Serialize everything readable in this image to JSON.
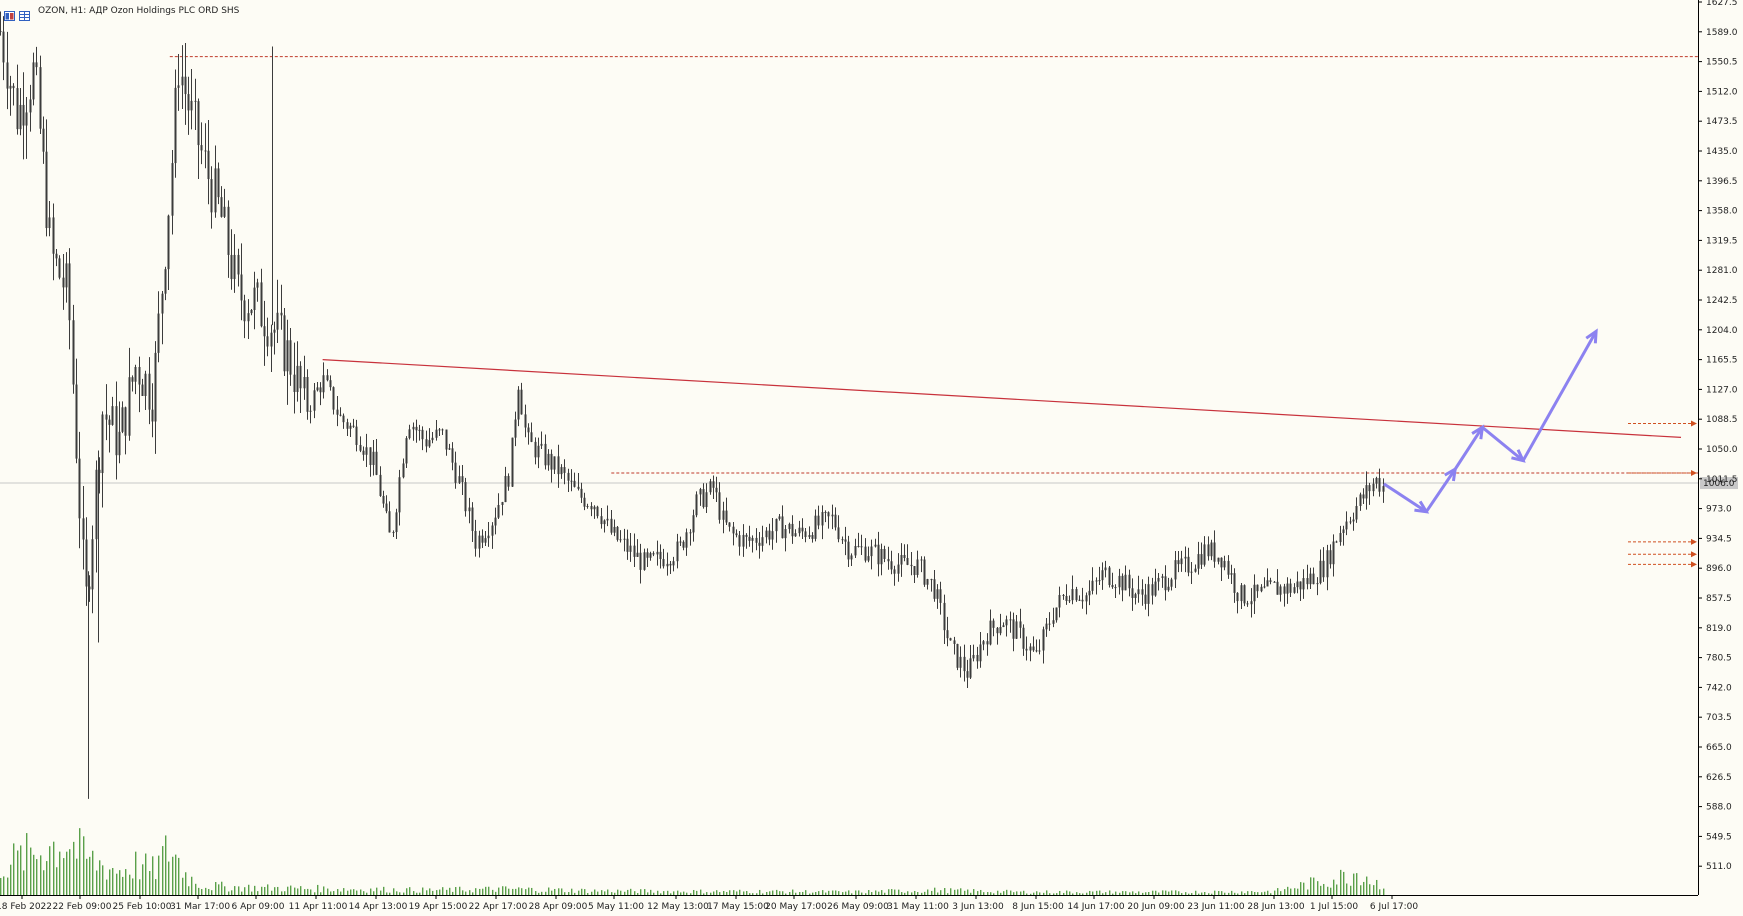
{
  "window": {
    "title": "OZON, H1:  АДР Ozon Holdings PLC ORD SHS"
  },
  "colors": {
    "background": "#fdfcf5",
    "candles": "#3c3c3c",
    "volume": "#5aa04a",
    "trendline": "#c8323c",
    "level": "#c03a2a",
    "forecast_arrows": "#8c82f0",
    "current_price_line": "#c8c8c8",
    "alert_arrows": "#d05020"
  },
  "chart_data": {
    "type": "candlestick",
    "symbol": "OZON",
    "timeframe": "H1",
    "ylim": [
      472.0,
      1627.5
    ],
    "y_ticks": [
      "1627.5",
      "1589.0",
      "1550.5",
      "1512.0",
      "1473.5",
      "1435.0",
      "1396.5",
      "1358.0",
      "1319.5",
      "1281.0",
      "1242.5",
      "1204.0",
      "1165.5",
      "1127.0",
      "1088.5",
      "1050.0",
      "1011.5",
      "973.0",
      "934.5",
      "896.0",
      "857.5",
      "819.0",
      "780.5",
      "742.0",
      "703.5",
      "665.0",
      "626.5",
      "588.0",
      "549.5",
      "511.0"
    ],
    "x_labels": [
      "18 Feb 2022",
      "22 Feb 09:00",
      "25 Feb 10:00",
      "31 Mar 17:00",
      "6 Apr 09:00",
      "11 Apr 11:00",
      "14 Apr 13:00",
      "19 Apr 15:00",
      "22 Apr 17:00",
      "28 Apr 09:00",
      "5 May 11:00",
      "12 May 13:00",
      "17 May 15:00",
      "20 May 17:00",
      "26 May 09:00",
      "31 May 11:00",
      "3 Jun 13:00",
      "8 Jun 15:00",
      "14 Jun 17:00",
      "20 Jun 09:00",
      "23 Jun 11:00",
      "28 Jun 13:00",
      "1 Jul 15:00",
      "6 Jul 17:00"
    ],
    "current_price": 1006.0,
    "current_price_label": "1006.0",
    "price_path": [
      [
        0,
        1590
      ],
      [
        0.01,
        1480
      ],
      [
        0.02,
        1540
      ],
      [
        0.03,
        1300
      ],
      [
        0.04,
        1250
      ],
      [
        0.05,
        840
      ],
      [
        0.06,
        1100
      ],
      [
        0.07,
        1060
      ],
      [
        0.08,
        1160
      ],
      [
        0.09,
        1120
      ],
      [
        0.1,
        1390
      ],
      [
        0.105,
        1550
      ],
      [
        0.11,
        1500
      ],
      [
        0.12,
        1420
      ],
      [
        0.13,
        1350
      ],
      [
        0.14,
        1250
      ],
      [
        0.15,
        1240
      ],
      [
        0.16,
        1210
      ],
      [
        0.17,
        1170
      ],
      [
        0.18,
        1100
      ],
      [
        0.19,
        1140
      ],
      [
        0.2,
        1090
      ],
      [
        0.21,
        1070
      ],
      [
        0.22,
        1030
      ],
      [
        0.23,
        930
      ],
      [
        0.24,
        1090
      ],
      [
        0.25,
        1060
      ],
      [
        0.26,
        1070
      ],
      [
        0.27,
        1010
      ],
      [
        0.28,
        930
      ],
      [
        0.29,
        960
      ],
      [
        0.3,
        1020
      ],
      [
        0.305,
        1140
      ],
      [
        0.31,
        1060
      ],
      [
        0.32,
        1040
      ],
      [
        0.33,
        1020
      ],
      [
        0.34,
        990
      ],
      [
        0.35,
        980
      ],
      [
        0.36,
        940
      ],
      [
        0.37,
        920
      ],
      [
        0.38,
        900
      ],
      [
        0.39,
        910
      ],
      [
        0.4,
        920
      ],
      [
        0.41,
        980
      ],
      [
        0.42,
        1000
      ],
      [
        0.425,
        960
      ],
      [
        0.43,
        940
      ],
      [
        0.44,
        930
      ],
      [
        0.45,
        940
      ],
      [
        0.46,
        950
      ],
      [
        0.47,
        940
      ],
      [
        0.48,
        950
      ],
      [
        0.49,
        960
      ],
      [
        0.5,
        920
      ],
      [
        0.51,
        920
      ],
      [
        0.52,
        910
      ],
      [
        0.53,
        900
      ],
      [
        0.54,
        900
      ],
      [
        0.55,
        870
      ],
      [
        0.56,
        790
      ],
      [
        0.57,
        760
      ],
      [
        0.58,
        810
      ],
      [
        0.59,
        830
      ],
      [
        0.6,
        810
      ],
      [
        0.61,
        780
      ],
      [
        0.62,
        840
      ],
      [
        0.63,
        870
      ],
      [
        0.64,
        860
      ],
      [
        0.65,
        890
      ],
      [
        0.66,
        880
      ],
      [
        0.67,
        860
      ],
      [
        0.68,
        870
      ],
      [
        0.69,
        890
      ],
      [
        0.7,
        900
      ],
      [
        0.71,
        920
      ],
      [
        0.72,
        910
      ],
      [
        0.73,
        860
      ],
      [
        0.74,
        860
      ],
      [
        0.75,
        870
      ],
      [
        0.76,
        870
      ],
      [
        0.77,
        880
      ],
      [
        0.78,
        900
      ],
      [
        0.79,
        950
      ],
      [
        0.8,
        980
      ],
      [
        0.81,
        1010
      ],
      [
        0.815,
        1000
      ]
    ],
    "volume_path": [
      [
        0,
        0.5
      ],
      [
        0.01,
        0.6
      ],
      [
        0.02,
        0.7
      ],
      [
        0.03,
        0.8
      ],
      [
        0.04,
        0.9
      ],
      [
        0.05,
        0.6
      ],
      [
        0.06,
        0.5
      ],
      [
        0.07,
        0.4
      ],
      [
        0.08,
        0.5
      ],
      [
        0.09,
        0.4
      ],
      [
        0.1,
        0.8
      ],
      [
        0.11,
        0.3
      ],
      [
        0.12,
        0.15
      ],
      [
        0.15,
        0.12
      ],
      [
        0.2,
        0.1
      ],
      [
        0.25,
        0.08
      ],
      [
        0.3,
        0.1
      ],
      [
        0.35,
        0.07
      ],
      [
        0.4,
        0.06
      ],
      [
        0.45,
        0.06
      ],
      [
        0.5,
        0.05
      ],
      [
        0.55,
        0.08
      ],
      [
        0.6,
        0.05
      ],
      [
        0.65,
        0.05
      ],
      [
        0.7,
        0.05
      ],
      [
        0.75,
        0.06
      ],
      [
        0.79,
        0.3
      ],
      [
        0.8,
        0.4
      ],
      [
        0.81,
        0.2
      ]
    ],
    "trendline": {
      "from": [
        0.19,
        1165.5
      ],
      "to": [
        0.99,
        1065.0
      ]
    },
    "horizontal_levels": [
      {
        "price": 1557.0,
        "x_start": 0.1
      },
      {
        "price": 1019.0,
        "x_start": 0.36
      }
    ],
    "alert_arrow_prices": [
      1083.0,
      1019.0,
      930.0,
      914.0,
      901.0
    ],
    "forecast_path": [
      [
        0.815,
        1005
      ],
      [
        0.84,
        969
      ],
      [
        0.857,
        1024
      ],
      [
        0.873,
        1078
      ],
      [
        0.897,
        1035
      ],
      [
        0.94,
        1202
      ]
    ],
    "grid": false,
    "legend": "none"
  }
}
